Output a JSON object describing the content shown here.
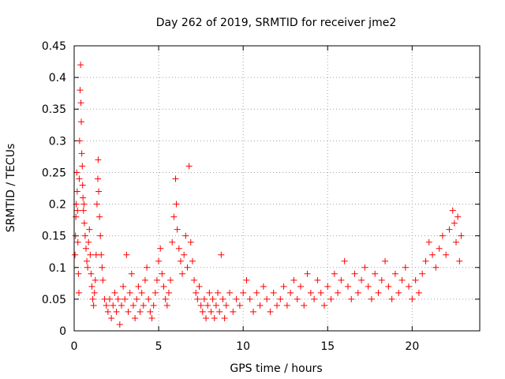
{
  "chart_data": {
    "type": "scatter",
    "title": "Day 262 of 2019, SRMTID for receiver jme2",
    "xlabel": "GPS time / hours",
    "ylabel": "SRMTID / TECUs",
    "xlim": [
      0,
      24
    ],
    "ylim": [
      0,
      0.45
    ],
    "xticks": [
      0,
      5,
      10,
      15,
      20
    ],
    "xtick_labels": [
      "0",
      "5",
      "10",
      "15",
      "20"
    ],
    "yticks": [
      0,
      0.05,
      0.1,
      0.15,
      0.2,
      0.25,
      0.3,
      0.35,
      0.4,
      0.45
    ],
    "ytick_labels": [
      "0",
      "0.05",
      "0.1",
      "0.15",
      "0.2",
      "0.25",
      "0.3",
      "0.35",
      "0.4",
      "0.45"
    ],
    "grid": true,
    "marker": "+",
    "color": "#ff0000",
    "series": [
      {
        "name": "SRMTID",
        "points": [
          [
            0.05,
            0.12
          ],
          [
            0.08,
            0.15
          ],
          [
            0.1,
            0.18
          ],
          [
            0.12,
            0.2
          ],
          [
            0.15,
            0.25
          ],
          [
            0.18,
            0.22
          ],
          [
            0.2,
            0.19
          ],
          [
            0.22,
            0.14
          ],
          [
            0.25,
            0.09
          ],
          [
            0.28,
            0.06
          ],
          [
            0.3,
            0.24
          ],
          [
            0.32,
            0.3
          ],
          [
            0.35,
            0.38
          ],
          [
            0.38,
            0.42
          ],
          [
            0.4,
            0.36
          ],
          [
            0.42,
            0.33
          ],
          [
            0.45,
            0.28
          ],
          [
            0.48,
            0.26
          ],
          [
            0.5,
            0.23
          ],
          [
            0.52,
            0.21
          ],
          [
            0.55,
            0.19
          ],
          [
            0.58,
            0.2
          ],
          [
            0.6,
            0.17
          ],
          [
            0.65,
            0.15
          ],
          [
            0.7,
            0.13
          ],
          [
            0.75,
            0.11
          ],
          [
            0.8,
            0.1
          ],
          [
            0.85,
            0.14
          ],
          [
            0.9,
            0.16
          ],
          [
            0.95,
            0.12
          ],
          [
            1.0,
            0.09
          ],
          [
            1.05,
            0.07
          ],
          [
            1.1,
            0.05
          ],
          [
            1.15,
            0.04
          ],
          [
            1.2,
            0.06
          ],
          [
            1.25,
            0.08
          ],
          [
            1.3,
            0.12
          ],
          [
            1.35,
            0.2
          ],
          [
            1.4,
            0.24
          ],
          [
            1.42,
            0.27
          ],
          [
            1.45,
            0.22
          ],
          [
            1.5,
            0.18
          ],
          [
            1.55,
            0.15
          ],
          [
            1.6,
            0.12
          ],
          [
            1.65,
            0.1
          ],
          [
            1.7,
            0.08
          ],
          [
            1.8,
            0.05
          ],
          [
            1.9,
            0.04
          ],
          [
            2.0,
            0.03
          ],
          [
            2.1,
            0.05
          ],
          [
            2.2,
            0.02
          ],
          [
            2.3,
            0.04
          ],
          [
            2.4,
            0.06
          ],
          [
            2.5,
            0.03
          ],
          [
            2.6,
            0.05
          ],
          [
            2.7,
            0.01
          ],
          [
            2.8,
            0.04
          ],
          [
            2.9,
            0.07
          ],
          [
            3.0,
            0.05
          ],
          [
            3.1,
            0.12
          ],
          [
            3.2,
            0.03
          ],
          [
            3.3,
            0.06
          ],
          [
            3.4,
            0.09
          ],
          [
            3.5,
            0.04
          ],
          [
            3.6,
            0.02
          ],
          [
            3.7,
            0.05
          ],
          [
            3.8,
            0.07
          ],
          [
            3.9,
            0.03
          ],
          [
            4.0,
            0.06
          ],
          [
            4.1,
            0.04
          ],
          [
            4.2,
            0.08
          ],
          [
            4.3,
            0.1
          ],
          [
            4.4,
            0.05
          ],
          [
            4.5,
            0.03
          ],
          [
            4.6,
            0.02
          ],
          [
            4.7,
            0.04
          ],
          [
            4.8,
            0.06
          ],
          [
            4.9,
            0.08
          ],
          [
            5.0,
            0.11
          ],
          [
            5.1,
            0.13
          ],
          [
            5.2,
            0.09
          ],
          [
            5.3,
            0.07
          ],
          [
            5.4,
            0.05
          ],
          [
            5.5,
            0.04
          ],
          [
            5.6,
            0.06
          ],
          [
            5.7,
            0.08
          ],
          [
            5.8,
            0.14
          ],
          [
            5.9,
            0.18
          ],
          [
            6.0,
            0.24
          ],
          [
            6.05,
            0.2
          ],
          [
            6.1,
            0.16
          ],
          [
            6.2,
            0.13
          ],
          [
            6.3,
            0.11
          ],
          [
            6.4,
            0.09
          ],
          [
            6.5,
            0.12
          ],
          [
            6.6,
            0.15
          ],
          [
            6.7,
            0.1
          ],
          [
            6.8,
            0.26
          ],
          [
            6.9,
            0.14
          ],
          [
            7.0,
            0.11
          ],
          [
            7.1,
            0.08
          ],
          [
            7.2,
            0.06
          ],
          [
            7.3,
            0.05
          ],
          [
            7.4,
            0.07
          ],
          [
            7.5,
            0.04
          ],
          [
            7.6,
            0.03
          ],
          [
            7.7,
            0.05
          ],
          [
            7.8,
            0.02
          ],
          [
            7.9,
            0.04
          ],
          [
            8.0,
            0.06
          ],
          [
            8.1,
            0.03
          ],
          [
            8.2,
            0.05
          ],
          [
            8.3,
            0.02
          ],
          [
            8.4,
            0.04
          ],
          [
            8.5,
            0.06
          ],
          [
            8.6,
            0.03
          ],
          [
            8.7,
            0.12
          ],
          [
            8.8,
            0.05
          ],
          [
            8.9,
            0.02
          ],
          [
            9.0,
            0.04
          ],
          [
            9.2,
            0.06
          ],
          [
            9.4,
            0.03
          ],
          [
            9.6,
            0.05
          ],
          [
            9.8,
            0.04
          ],
          [
            10.0,
            0.06
          ],
          [
            10.2,
            0.08
          ],
          [
            10.4,
            0.05
          ],
          [
            10.6,
            0.03
          ],
          [
            10.8,
            0.06
          ],
          [
            11.0,
            0.04
          ],
          [
            11.2,
            0.07
          ],
          [
            11.4,
            0.05
          ],
          [
            11.6,
            0.03
          ],
          [
            11.8,
            0.06
          ],
          [
            12.0,
            0.04
          ],
          [
            12.2,
            0.05
          ],
          [
            12.4,
            0.07
          ],
          [
            12.6,
            0.04
          ],
          [
            12.8,
            0.06
          ],
          [
            13.0,
            0.08
          ],
          [
            13.2,
            0.05
          ],
          [
            13.4,
            0.07
          ],
          [
            13.6,
            0.04
          ],
          [
            13.8,
            0.09
          ],
          [
            14.0,
            0.06
          ],
          [
            14.2,
            0.05
          ],
          [
            14.4,
            0.08
          ],
          [
            14.6,
            0.06
          ],
          [
            14.8,
            0.04
          ],
          [
            15.0,
            0.07
          ],
          [
            15.2,
            0.05
          ],
          [
            15.4,
            0.09
          ],
          [
            15.6,
            0.06
          ],
          [
            15.8,
            0.08
          ],
          [
            16.0,
            0.11
          ],
          [
            16.2,
            0.07
          ],
          [
            16.4,
            0.05
          ],
          [
            16.6,
            0.09
          ],
          [
            16.8,
            0.06
          ],
          [
            17.0,
            0.08
          ],
          [
            17.2,
            0.1
          ],
          [
            17.4,
            0.07
          ],
          [
            17.6,
            0.05
          ],
          [
            17.8,
            0.09
          ],
          [
            18.0,
            0.06
          ],
          [
            18.2,
            0.08
          ],
          [
            18.4,
            0.11
          ],
          [
            18.6,
            0.07
          ],
          [
            18.8,
            0.05
          ],
          [
            19.0,
            0.09
          ],
          [
            19.2,
            0.06
          ],
          [
            19.4,
            0.08
          ],
          [
            19.6,
            0.1
          ],
          [
            19.8,
            0.07
          ],
          [
            20.0,
            0.05
          ],
          [
            20.2,
            0.08
          ],
          [
            20.4,
            0.06
          ],
          [
            20.6,
            0.09
          ],
          [
            20.8,
            0.11
          ],
          [
            21.0,
            0.14
          ],
          [
            21.2,
            0.12
          ],
          [
            21.4,
            0.1
          ],
          [
            21.6,
            0.13
          ],
          [
            21.8,
            0.15
          ],
          [
            22.0,
            0.12
          ],
          [
            22.2,
            0.16
          ],
          [
            22.4,
            0.19
          ],
          [
            22.5,
            0.17
          ],
          [
            22.6,
            0.14
          ],
          [
            22.7,
            0.18
          ],
          [
            22.8,
            0.11
          ],
          [
            22.9,
            0.15
          ]
        ]
      }
    ]
  }
}
